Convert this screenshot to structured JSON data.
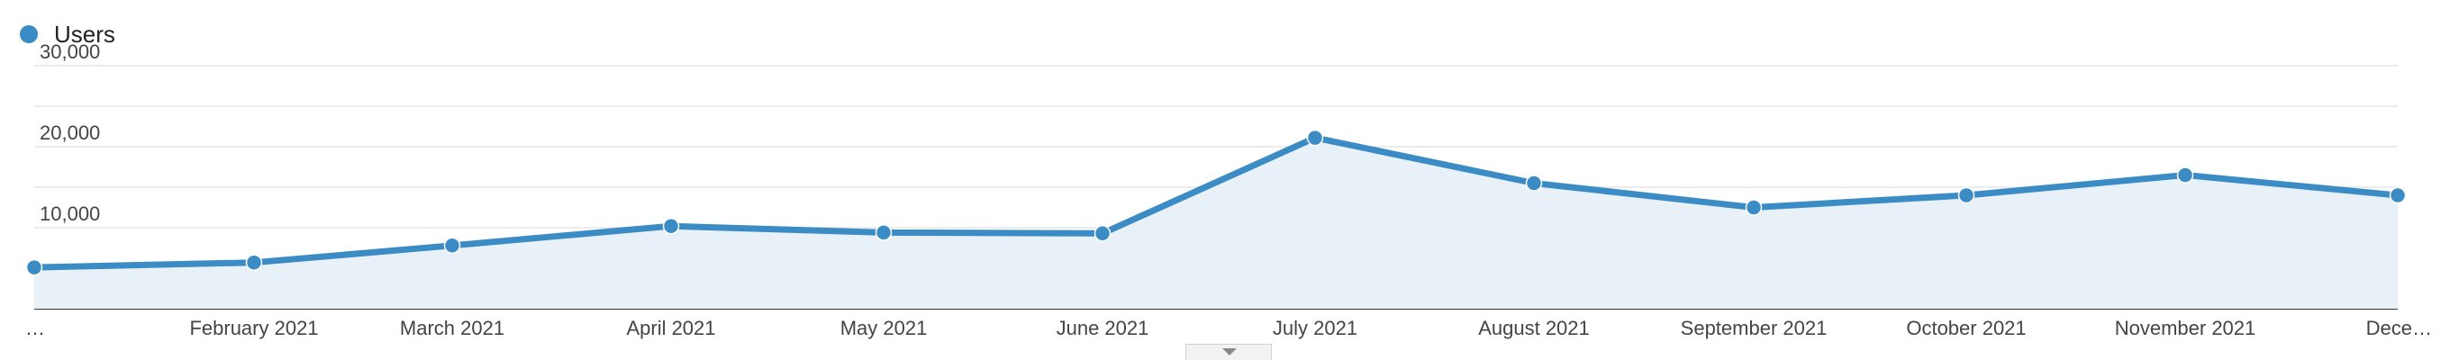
{
  "legend": {
    "label": "Users",
    "color": "#3b8bc4"
  },
  "colors": {
    "line": "#3b8bc4",
    "area": "#e8f0f8",
    "grid": "#e6e6e6",
    "axis": "#333333"
  },
  "expand_control": {
    "icon": "chevron-down-icon"
  },
  "chart_data": {
    "type": "area",
    "x": [
      "…",
      "February 2021",
      "March 2021",
      "April 2021",
      "May 2021",
      "June 2021",
      "July 2021",
      "August 2021",
      "September 2021",
      "October 2021",
      "November 2021",
      "Dece…"
    ],
    "series": [
      {
        "name": "Users",
        "values": [
          5100,
          5700,
          7800,
          10200,
          9400,
          9300,
          21100,
          15500,
          12500,
          14000,
          16500,
          14000
        ]
      }
    ],
    "y_ticks": [
      "10,000",
      "20,000",
      "30,000"
    ],
    "y_tick_values": [
      10000,
      20000,
      30000
    ],
    "ylim": [
      0,
      30000
    ],
    "grid": true,
    "legend_position": "top-left"
  }
}
